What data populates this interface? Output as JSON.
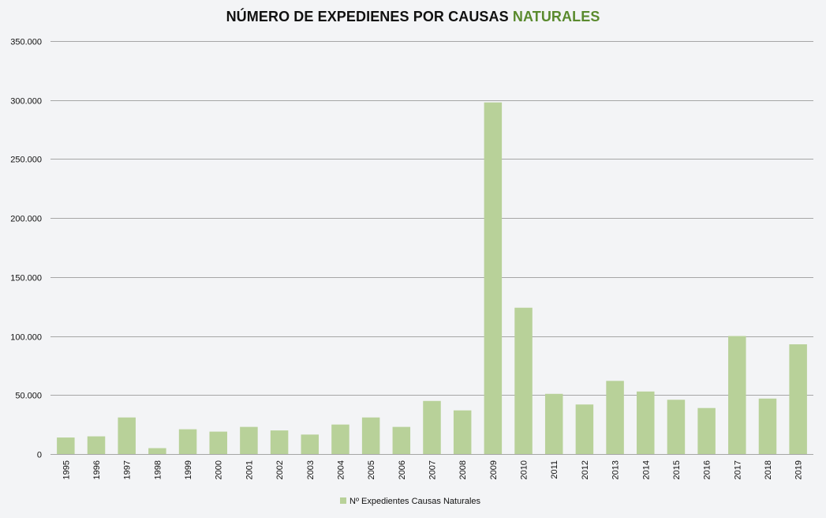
{
  "chart_data": {
    "type": "bar",
    "title": "NÚMERO DE EXPEDIENES POR CAUSAS",
    "title_highlight": "NATURALES",
    "xlabel": "",
    "ylabel": "",
    "ylim": [
      0,
      350000
    ],
    "yticks": [
      0,
      50000,
      100000,
      150000,
      200000,
      250000,
      300000,
      350000
    ],
    "ytick_labels": [
      "0",
      "50.000",
      "100.000",
      "150.000",
      "200.000",
      "250.000",
      "300.000",
      "350.000"
    ],
    "grid": true,
    "legend_position": "bottom",
    "categories": [
      "1995",
      "1996",
      "1997",
      "1998",
      "1999",
      "2000",
      "2001",
      "2002",
      "2003",
      "2004",
      "2005",
      "2006",
      "2007",
      "2008",
      "2009",
      "2010",
      "2011",
      "2012",
      "2013",
      "2014",
      "2015",
      "2016",
      "2017",
      "2018",
      "2019"
    ],
    "series": [
      {
        "name": "Nº Expedientes Causas Naturales",
        "color": "#b8d199",
        "values": [
          14000,
          15000,
          31000,
          5000,
          21000,
          19000,
          23000,
          20000,
          16500,
          25000,
          31000,
          23000,
          45000,
          37000,
          298000,
          124000,
          51000,
          42000,
          62000,
          53000,
          46000,
          39000,
          100000,
          47000,
          93000
        ]
      }
    ]
  },
  "colors": {
    "background": "#f3f4f6",
    "bar": "#b8d199",
    "grid": "#a6a6a6",
    "title_accent": "#5a8a2e"
  }
}
